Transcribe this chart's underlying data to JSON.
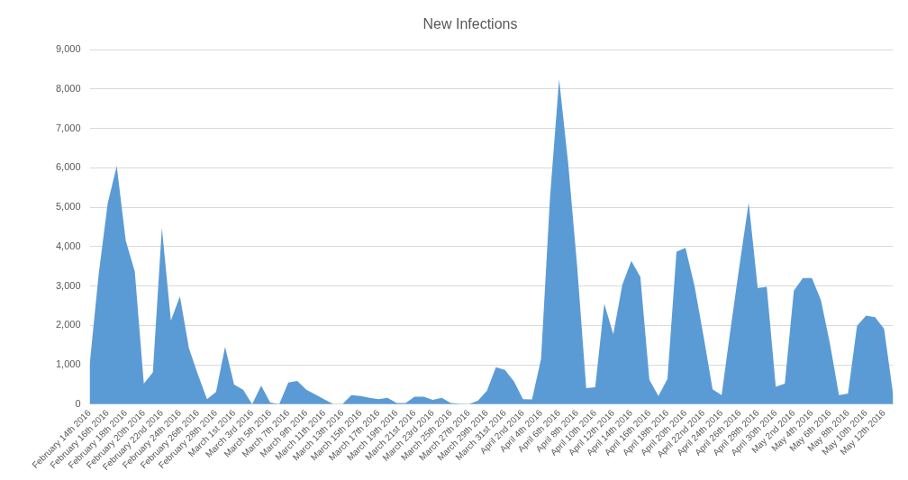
{
  "chart_data": {
    "type": "area",
    "title": "New Infections",
    "categories": [
      "February 14th 2016",
      null,
      "February 16th 2016",
      null,
      "February 18th 2016",
      null,
      "February 20th 2016",
      null,
      "February 22nd 2016",
      null,
      "February 24th 2016",
      null,
      "February 26th 2016",
      null,
      "February 28th 2016",
      null,
      "March 1st 2016",
      null,
      "March 3rd 2016",
      null,
      "March 5th 2016",
      null,
      "March 7th 2016",
      null,
      "March 9th 2016",
      null,
      "March 11th 2016",
      null,
      "March 13th 2016",
      null,
      "March 15th 2016",
      null,
      "March 17th 2016",
      null,
      "March 19th 2016",
      null,
      "March 21st 2016",
      null,
      "March 23rd 2016",
      null,
      "March 25th 2016",
      null,
      "March 27th 2016",
      null,
      "March 29th 2016",
      null,
      "March 31st 2016",
      null,
      "April 2nd 2016",
      null,
      "April 4th 2016",
      null,
      "April 6th 2016",
      null,
      "April 8th 2016",
      null,
      "April 10th 2016",
      null,
      "April 12th 2016",
      null,
      "April 14th 2016",
      null,
      "April 16th 2016",
      null,
      "April 18th 2016",
      null,
      "April 20th 2016",
      null,
      "April 22nd 2016",
      null,
      "April 24th 2016",
      null,
      "April 26th 2016",
      null,
      "April 28th 2016",
      null,
      "April 30th 2016",
      null,
      "May 2nd 2016",
      null,
      "May 4th 2016",
      null,
      "May 6th 2016",
      null,
      "May 8th 2016",
      null,
      "May 10th 2016",
      null,
      "May 12th 2016",
      null
    ],
    "series": [
      {
        "color": "#5b9bd5",
        "values": [
          1000,
          3300,
          5100,
          6050,
          4150,
          3370,
          520,
          810,
          4480,
          2120,
          2740,
          1420,
          750,
          130,
          310,
          1460,
          500,
          370,
          0,
          470,
          40,
          0,
          550,
          590,
          370,
          250,
          120,
          0,
          0,
          230,
          210,
          160,
          130,
          160,
          30,
          30,
          190,
          190,
          110,
          160,
          30,
          10,
          0,
          90,
          340,
          940,
          870,
          580,
          130,
          120,
          1150,
          5280,
          8250,
          6130,
          3500,
          410,
          430,
          2550,
          1780,
          3030,
          3640,
          3230,
          620,
          210,
          640,
          3870,
          3970,
          3000,
          1730,
          380,
          230,
          1930,
          3560,
          5120,
          2950,
          2980,
          440,
          520,
          2880,
          3200,
          3200,
          2640,
          1540,
          230,
          270,
          1990,
          2250,
          2210,
          1910,
          250
        ]
      }
    ],
    "ylim": [
      0,
      9000
    ],
    "yticks": [
      0,
      {
        "value": 1000,
        "label": "1,000"
      },
      {
        "value": 2000,
        "label": "2,000"
      },
      {
        "value": 3000,
        "label": "3,000"
      },
      {
        "value": 4000,
        "label": "4,000"
      },
      {
        "value": 5000,
        "label": "5,000"
      },
      {
        "value": 6000,
        "label": "6,000"
      },
      {
        "value": 7000,
        "label": "7,000"
      },
      {
        "value": 8000,
        "label": "8,000"
      },
      {
        "value": 9000,
        "label": "9,000"
      }
    ],
    "grid": "y",
    "legend": false
  }
}
